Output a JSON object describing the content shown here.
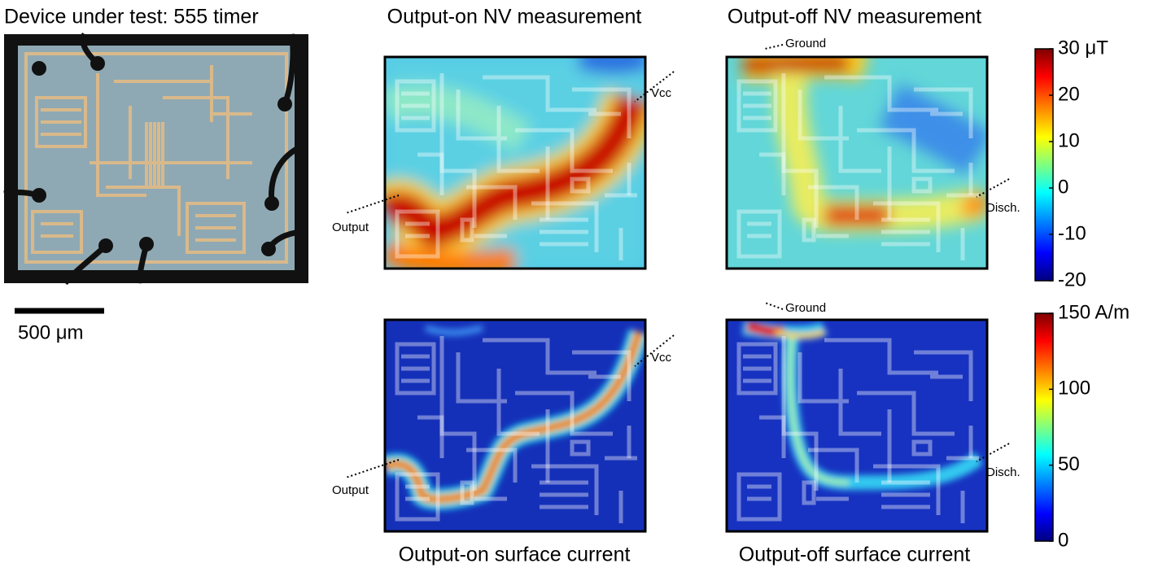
{
  "panels": {
    "device": {
      "title": "Device under test: 555 timer",
      "scale_bar": "500 μm"
    },
    "on_nv": {
      "title": "Output-on NV measurement",
      "annotations": [
        "Vcc",
        "Output"
      ]
    },
    "off_nv": {
      "title": "Output-off NV measurement",
      "annotations": [
        "Ground",
        "Disch."
      ]
    },
    "on_current": {
      "title": "Output-on surface current",
      "annotations": [
        "Vcc",
        "Output"
      ]
    },
    "off_current": {
      "title": "Output-off surface current",
      "annotations": [
        "Ground",
        "Disch."
      ]
    }
  },
  "colorbars": [
    {
      "lim": [
        -20,
        30
      ],
      "ticks": [
        {
          "value": 30,
          "label": "30 μT"
        },
        20,
        10,
        0,
        -10,
        -20
      ]
    },
    {
      "lim": [
        0,
        150
      ],
      "ticks": [
        {
          "value": 150,
          "label": "150 A/m"
        },
        100,
        50,
        0
      ]
    }
  ]
}
